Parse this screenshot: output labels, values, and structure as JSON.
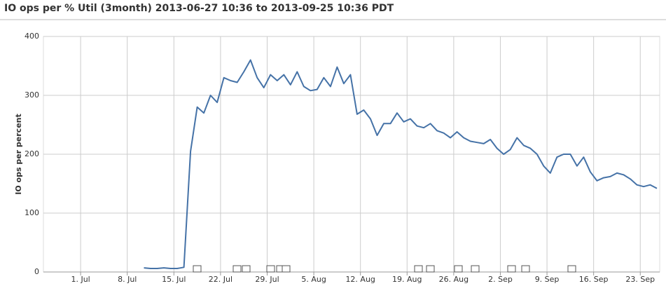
{
  "chart_data": {
    "type": "line",
    "title": "IO ops per % Util (3month) 2013-06-27 10:36 to 2013-09-25 10:36 PDT",
    "y_label": "IO ops per percent",
    "x": [
      "2013-07-10",
      "2013-07-11",
      "2013-07-12",
      "2013-07-13",
      "2013-07-14",
      "2013-07-15",
      "2013-07-16",
      "2013-07-17",
      "2013-07-18",
      "2013-07-19",
      "2013-07-20",
      "2013-07-21",
      "2013-07-22",
      "2013-07-23",
      "2013-07-24",
      "2013-07-25",
      "2013-07-26",
      "2013-07-27",
      "2013-07-28",
      "2013-07-29",
      "2013-07-30",
      "2013-07-31",
      "2013-08-01",
      "2013-08-02",
      "2013-08-03",
      "2013-08-04",
      "2013-08-05",
      "2013-08-06",
      "2013-08-07",
      "2013-08-08",
      "2013-08-09",
      "2013-08-10",
      "2013-08-11",
      "2013-08-12",
      "2013-08-13",
      "2013-08-14",
      "2013-08-15",
      "2013-08-16",
      "2013-08-17",
      "2013-08-18",
      "2013-08-19",
      "2013-08-20",
      "2013-08-21",
      "2013-08-22",
      "2013-08-23",
      "2013-08-24",
      "2013-08-25",
      "2013-08-26",
      "2013-08-27",
      "2013-08-28",
      "2013-08-29",
      "2013-08-30",
      "2013-08-31",
      "2013-09-01",
      "2013-09-02",
      "2013-09-03",
      "2013-09-04",
      "2013-09-05",
      "2013-09-06",
      "2013-09-07",
      "2013-09-08",
      "2013-09-09",
      "2013-09-10",
      "2013-09-11",
      "2013-09-12",
      "2013-09-13",
      "2013-09-14",
      "2013-09-15",
      "2013-09-16",
      "2013-09-17",
      "2013-09-18",
      "2013-09-19",
      "2013-09-20",
      "2013-09-21",
      "2013-09-22",
      "2013-09-23",
      "2013-09-24",
      "2013-09-25"
    ],
    "series": [
      {
        "name": "IO ops per percent",
        "color": "#4572a7",
        "values": [
          7,
          6,
          6,
          7,
          6,
          6,
          8,
          205,
          280,
          270,
          300,
          288,
          330,
          325,
          322,
          340,
          360,
          330,
          313,
          335,
          325,
          335,
          318,
          340,
          315,
          308,
          310,
          330,
          315,
          348,
          320,
          335,
          268,
          275,
          260,
          232,
          252,
          252,
          270,
          255,
          260,
          248,
          245,
          252,
          240,
          236,
          228,
          238,
          228,
          222,
          220,
          218,
          225,
          210,
          200,
          208,
          228,
          215,
          210,
          200,
          180,
          168,
          195,
          200,
          200,
          180,
          195,
          170,
          155,
          160,
          162,
          168,
          165,
          158,
          148,
          145,
          148,
          142
        ]
      }
    ],
    "xlim": [
      "2013-06-25 10:00",
      "2013-09-25 22:00"
    ],
    "xticks": [
      {
        "value": "2013-07-01",
        "label": "1. Jul"
      },
      {
        "value": "2013-07-08",
        "label": "8. Jul"
      },
      {
        "value": "2013-07-15",
        "label": "15. Jul"
      },
      {
        "value": "2013-07-22",
        "label": "22. Jul"
      },
      {
        "value": "2013-07-29",
        "label": "29. Jul"
      },
      {
        "value": "2013-08-05",
        "label": "5. Aug"
      },
      {
        "value": "2013-08-12",
        "label": "12. Aug"
      },
      {
        "value": "2013-08-19",
        "label": "19. Aug"
      },
      {
        "value": "2013-08-26",
        "label": "26. Aug"
      },
      {
        "value": "2013-09-02",
        "label": "2. Sep"
      },
      {
        "value": "2013-09-09",
        "label": "9. Sep"
      },
      {
        "value": "2013-09-16",
        "label": "16. Sep"
      },
      {
        "value": "2013-09-23",
        "label": "23. Sep"
      }
    ],
    "ylim": [
      0,
      400
    ],
    "yticks": [
      0,
      100,
      200,
      300,
      400
    ],
    "grid": true
  }
}
